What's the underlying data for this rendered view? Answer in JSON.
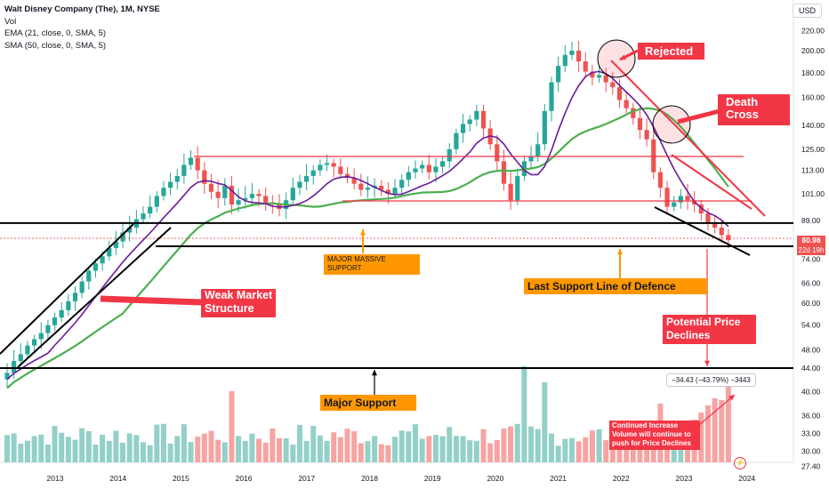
{
  "legend": {
    "title": "Walt Disney Company (The), 1M, NYSE",
    "vol": "Vol",
    "ema": "EMA (21, close, 0, SMA, 5)",
    "sma": "SMA (50, close, 0, SMA, 5)"
  },
  "currency_button": "USD",
  "price_tag": {
    "price": "80.98",
    "countdown": "22d 19h"
  },
  "measure_label": "−34.43 (−43.79%) −3443",
  "annotations": {
    "rejected": "Rejected",
    "death_cross_1": "Death",
    "death_cross_2": "Cross",
    "weak_1": "Weak Market",
    "weak_2": "Structure",
    "major_massive_1": "MAJOR MASSIVE",
    "major_massive_2": "SUPPORT",
    "last_support": "Last Support Line of Defence",
    "potential_1": "Potential Price",
    "potential_2": "Declines",
    "major_support": "Major Support",
    "volume_1": "Continued Increase",
    "volume_2": "Volume will continue to",
    "volume_3": "push for Price Declines"
  },
  "colors": {
    "up": "#26a69a",
    "down": "#ef5350",
    "vol_up": "#93d0c8",
    "vol_down": "#f6a4a2",
    "ema": "#6a1b9a",
    "sma": "#4caf50",
    "annotation_red": "#f23645",
    "annotation_orange": "#ff9800"
  },
  "chart_data": {
    "type": "candlestick",
    "symbol": "Walt Disney Company (The)",
    "interval": "1M",
    "exchange": "NYSE",
    "y_scale": "log",
    "y_ticks": [
      "220.00",
      "200.00",
      "180.00",
      "160.00",
      "140.00",
      "125.00",
      "113.00",
      "101.00",
      "89.00",
      "80.98",
      "74.00",
      "66.00",
      "60.00",
      "54.00",
      "48.00",
      "44.00",
      "40.00",
      "36.00",
      "33.00",
      "30.00",
      "27.40"
    ],
    "x_ticks": [
      "2013",
      "2014",
      "2015",
      "2016",
      "2017",
      "2018",
      "2019",
      "2020",
      "2021",
      "2022",
      "2023",
      "2024"
    ],
    "ohlc_close": [
      43.0,
      45.5,
      47.0,
      49.0,
      50.5,
      52.0,
      54.0,
      56.0,
      58.0,
      60.5,
      63.0,
      66.5,
      70.0,
      72.5,
      75.0,
      78.0,
      80.5,
      84.0,
      86.0,
      89.5,
      92.0,
      95.0,
      100.0,
      104.0,
      107.0,
      110.0,
      116.0,
      120.0,
      113.0,
      106.0,
      102.0,
      99.0,
      105.0,
      96.0,
      98.0,
      99.0,
      101.0,
      100.0,
      97.0,
      96.0,
      94.0,
      98.0,
      104.0,
      107.0,
      110.0,
      113.0,
      116.0,
      117.0,
      115.0,
      111.0,
      109.0,
      106.0,
      103.0,
      104.0,
      105.0,
      103.0,
      101.0,
      104.0,
      108.0,
      112.0,
      114.0,
      116.0,
      112.0,
      115.0,
      118.0,
      125.0,
      135.0,
      141.0,
      144.0,
      150.0,
      138.0,
      128.0,
      118.0,
      106.0,
      98.0,
      110.0,
      118.0,
      121.0,
      128.0,
      150.0,
      172.0,
      186.0,
      196.0,
      200.0,
      190.0,
      181.0,
      176.0,
      178.0,
      172.0,
      168.0,
      158.0,
      152.0,
      145.0,
      137.0,
      131.0,
      112.0,
      104.0,
      95.0,
      97.0,
      100.0,
      98.0,
      96.0,
      92.0,
      88.0,
      86.0,
      83.0,
      80.98
    ],
    "annotated_levels": {
      "major_massive_support": 89.0,
      "last_support_line": 80.0,
      "major_support": 44.0,
      "resistance_high": 125.0,
      "resistance_mid": 101.0
    },
    "measure": {
      "change": -34.43,
      "percent": -43.79
    },
    "series": [
      {
        "name": "EMA (21, close, 0, SMA, 5)",
        "color": "#6a1b9a"
      },
      {
        "name": "SMA (50, close, 0, SMA, 5)",
        "color": "#4caf50"
      }
    ]
  }
}
